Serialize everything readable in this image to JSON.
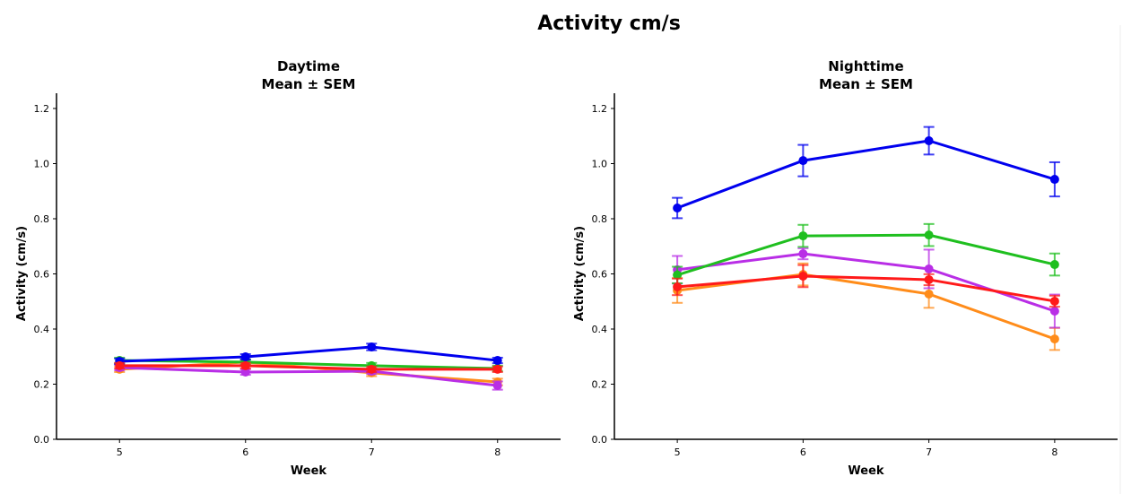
{
  "title": "Activity cm/s",
  "chart_data": [
    {
      "type": "line",
      "title": "Daytime",
      "subtitle": "Mean ± SEM",
      "xlabel": "Week",
      "ylabel": "Activity (cm/s)",
      "x": [
        5,
        6,
        7,
        8
      ],
      "xlim": [
        4.5,
        8.5
      ],
      "ylim": [
        0,
        1.25
      ],
      "yticks": [
        "0.0",
        "0.2",
        "0.4",
        "0.6",
        "0.8",
        "1.0",
        "1.2"
      ],
      "xticks": [
        "5",
        "6",
        "7",
        "8"
      ],
      "grid": false,
      "series": [
        {
          "color": "#ff8c1a",
          "values": [
            0.254,
            0.28,
            0.241,
            0.208
          ],
          "sem": [
            0.01,
            0.01,
            0.012,
            0.012
          ]
        },
        {
          "color": "#b92ee6",
          "values": [
            0.26,
            0.244,
            0.247,
            0.195
          ],
          "sem": [
            0.01,
            0.01,
            0.01,
            0.015
          ]
        },
        {
          "color": "#1fbf1f",
          "values": [
            0.286,
            0.28,
            0.267,
            0.257
          ],
          "sem": [
            0.01,
            0.01,
            0.01,
            0.01
          ]
        },
        {
          "color": "#0000ee",
          "values": [
            0.283,
            0.299,
            0.335,
            0.286
          ],
          "sem": [
            0.01,
            0.01,
            0.012,
            0.01
          ]
        },
        {
          "color": "#ff1a1a",
          "values": [
            0.267,
            0.267,
            0.254,
            0.254
          ],
          "sem": [
            0.01,
            0.01,
            0.01,
            0.01
          ]
        }
      ]
    },
    {
      "type": "line",
      "title": "Nighttime",
      "subtitle": "Mean ± SEM",
      "xlabel": "Week",
      "ylabel": "Activity (cm/s)",
      "x": [
        5,
        6,
        7,
        8
      ],
      "xlim": [
        4.5,
        8.5
      ],
      "ylim": [
        0,
        1.25
      ],
      "yticks": [
        "0.0",
        "0.2",
        "0.4",
        "0.6",
        "0.8",
        "1.0",
        "1.2"
      ],
      "xticks": [
        "5",
        "6",
        "7",
        "8"
      ],
      "grid": false,
      "series": [
        {
          "color": "#ff8c1a",
          "values": [
            0.54,
            0.598,
            0.527,
            0.364
          ],
          "sem": [
            0.045,
            0.04,
            0.05,
            0.04
          ]
        },
        {
          "color": "#b92ee6",
          "values": [
            0.615,
            0.673,
            0.618,
            0.465
          ],
          "sem": [
            0.05,
            0.02,
            0.07,
            0.06
          ]
        },
        {
          "color": "#1fbf1f",
          "values": [
            0.596,
            0.738,
            0.741,
            0.634
          ],
          "sem": [
            0.03,
            0.04,
            0.04,
            0.04
          ]
        },
        {
          "color": "#0000ee",
          "values": [
            0.839,
            1.011,
            1.083,
            0.943
          ],
          "sem": [
            0.037,
            0.057,
            0.05,
            0.062
          ]
        },
        {
          "color": "#ff1a1a",
          "values": [
            0.553,
            0.592,
            0.579,
            0.501
          ],
          "sem": [
            0.03,
            0.04,
            0.02,
            0.02
          ]
        }
      ]
    }
  ]
}
